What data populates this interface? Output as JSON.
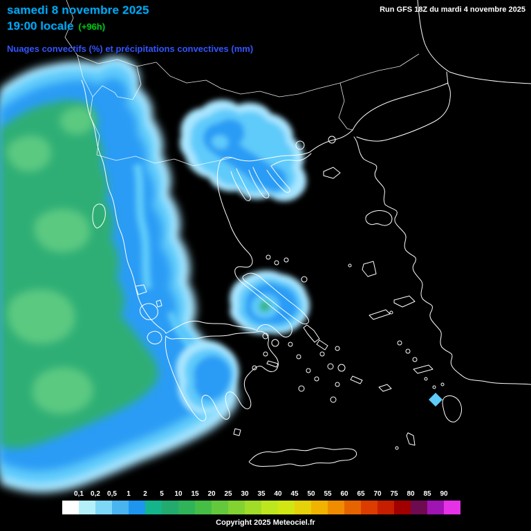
{
  "header": {
    "date": "samedi 8 novembre 2025",
    "time": "19:00 locale",
    "offset": "(+96h)",
    "subtitle": "Nuages convectifs (%) et précipitations convectives (mm)",
    "run_info": "Run GFS 18Z du mardi 4 novembre 2025"
  },
  "colors": {
    "date_text": "#00a8f0",
    "offset_text": "#00c800",
    "subtitle_text": "#3355ff",
    "run_text": "#ffffff",
    "map_background": "#000000",
    "coastline": "#ffffff",
    "precip_pale": "#a9e6ff",
    "precip_cyan": "#5ecbfa",
    "precip_blue": "#2b9cf5",
    "precip_green": "#2fae74",
    "precip_light_green": "#5bc981"
  },
  "legend": {
    "values": [
      "0,1",
      "0,2",
      "0,5",
      "1",
      "2",
      "5",
      "10",
      "15",
      "20",
      "25",
      "30",
      "35",
      "40",
      "45",
      "50",
      "55",
      "60",
      "65",
      "70",
      "75",
      "80",
      "85",
      "90"
    ],
    "colors": [
      "#ffffff",
      "#b4f0fa",
      "#7dd8f8",
      "#4ab4f0",
      "#1e96f0",
      "#14b48c",
      "#23aa6e",
      "#2fb45a",
      "#46be46",
      "#64c83c",
      "#82d232",
      "#a0dc28",
      "#bee61e",
      "#d2e614",
      "#e6d20a",
      "#f0b400",
      "#f08c00",
      "#e66400",
      "#dc3c00",
      "#c81e00",
      "#a00000",
      "#6e0a50",
      "#a014b4",
      "#e632e6"
    ]
  },
  "footer": {
    "copyright": "Copyright 2025 Meteociel.fr"
  }
}
